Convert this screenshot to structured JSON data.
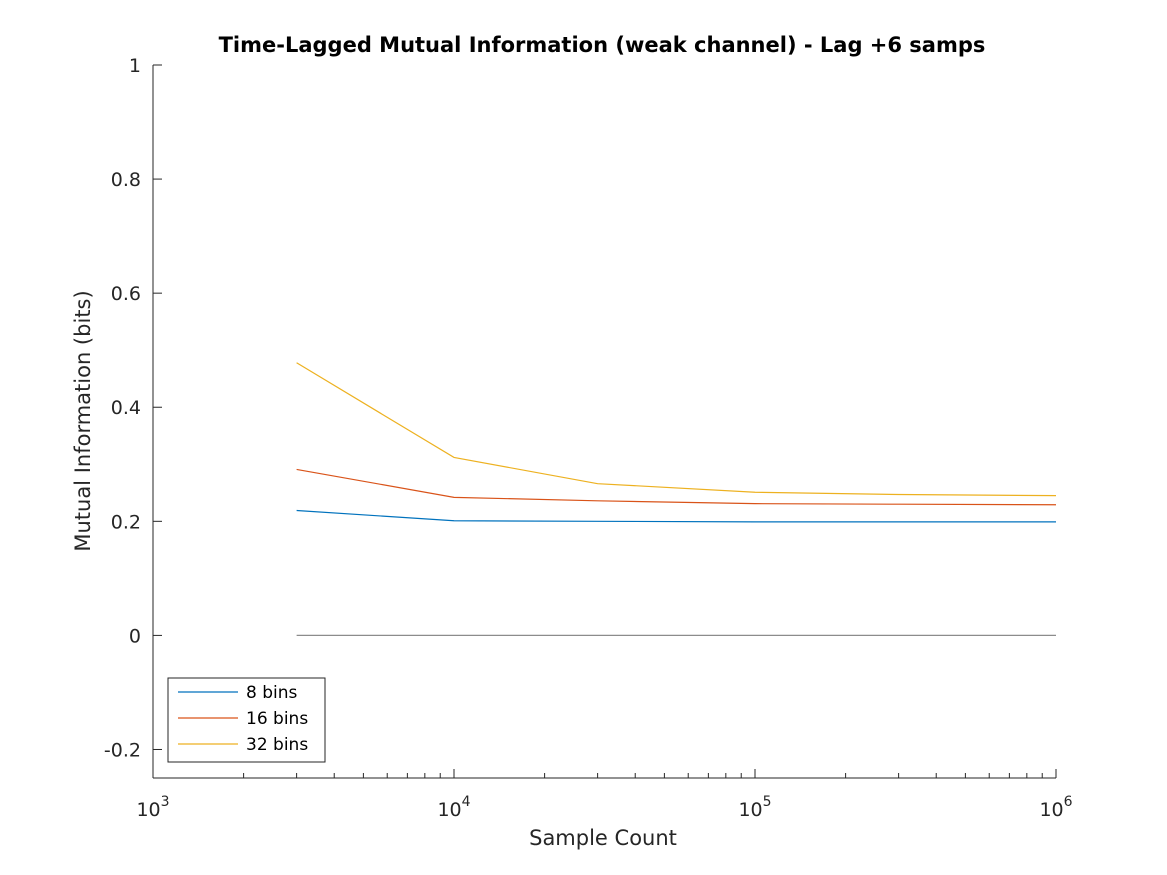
{
  "chart_data": {
    "type": "line",
    "title": "Time-Lagged Mutual Information (weak channel) - Lag +6 samps",
    "xlabel": "Sample Count",
    "ylabel": "Mutual Information (bits)",
    "xscale": "log",
    "xlim": [
      1000,
      1000000
    ],
    "ylim": [
      -0.25,
      1
    ],
    "x_ticks": [
      {
        "value": 1000,
        "base": "10",
        "exp": "3"
      },
      {
        "value": 10000,
        "base": "10",
        "exp": "4"
      },
      {
        "value": 100000,
        "base": "10",
        "exp": "5"
      },
      {
        "value": 1000000,
        "base": "10",
        "exp": "6"
      }
    ],
    "y_ticks": [
      {
        "value": 1,
        "label": "1"
      },
      {
        "value": 0.8,
        "label": "0.8"
      },
      {
        "value": 0.6,
        "label": "0.6"
      },
      {
        "value": 0.4,
        "label": "0.4"
      },
      {
        "value": 0.2,
        "label": "0.2"
      },
      {
        "value": 0,
        "label": "0"
      },
      {
        "value": -0.2,
        "label": "-0.2"
      }
    ],
    "x": [
      3000,
      10000,
      30000,
      100000,
      300000,
      1000000
    ],
    "series": [
      {
        "name": "8 bins",
        "color": "#0072BD",
        "values": [
          0.219,
          0.201,
          0.2,
          0.199,
          0.199,
          0.199
        ]
      },
      {
        "name": "16 bins",
        "color": "#D95319",
        "values": [
          0.291,
          0.242,
          0.236,
          0.231,
          0.23,
          0.229
        ]
      },
      {
        "name": "32 bins",
        "color": "#EDB120",
        "values": [
          0.478,
          0.312,
          0.266,
          0.251,
          0.247,
          0.245
        ]
      }
    ],
    "reference_line": {
      "y": 0,
      "x_start": 3000,
      "x_end": 1000000,
      "color": "#8c8c8c"
    },
    "grid": false,
    "legend_position": "bottom-left"
  }
}
